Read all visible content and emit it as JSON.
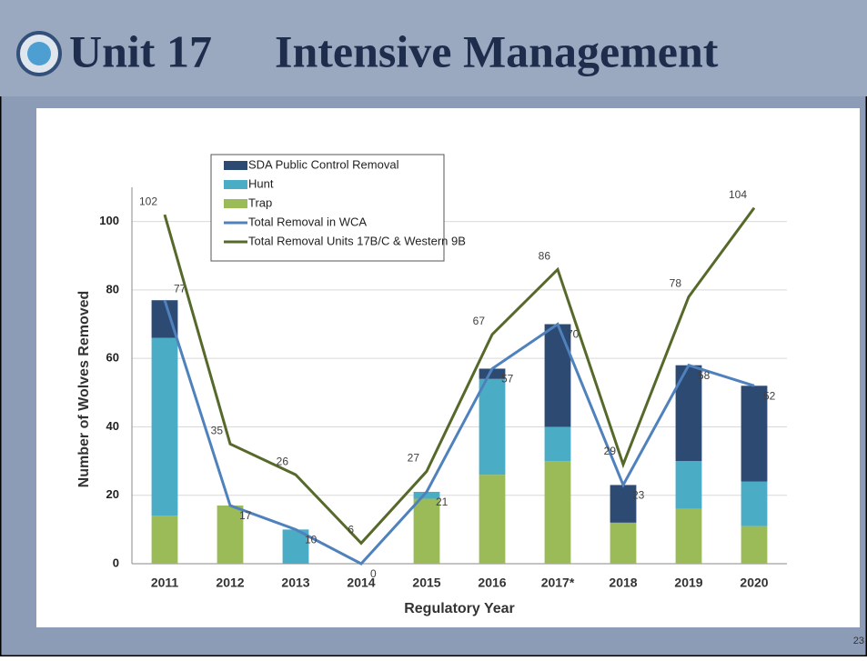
{
  "slide": {
    "title": [
      "Unit 17",
      "Intensive Management"
    ],
    "page_number": "23"
  },
  "chart_data": {
    "type": "bar",
    "stacked": true,
    "x_label": "Regulatory Year",
    "y_label": "Number of Wolves Removed",
    "categories": [
      "2011",
      "2012",
      "2013",
      "2014",
      "2015",
      "2016",
      "2017*",
      "2018",
      "2019",
      "2020"
    ],
    "series": [
      {
        "name": "SDA Public Control Removal",
        "type": "bar",
        "color": "#2d4a72",
        "values": [
          11,
          0,
          0,
          0,
          0,
          3,
          30,
          11,
          28,
          28
        ]
      },
      {
        "name": "Hunt",
        "type": "bar",
        "color": "#4bacc6",
        "values": [
          52,
          0,
          10,
          0,
          2,
          28,
          10,
          0,
          14,
          13
        ]
      },
      {
        "name": "Trap",
        "type": "bar",
        "color": "#9bbb59",
        "values": [
          14,
          17,
          0,
          0,
          19,
          26,
          30,
          12,
          16,
          11
        ]
      },
      {
        "name": "Total Removal in WCA",
        "type": "line",
        "color": "#4f81bd",
        "values": [
          77,
          17,
          10,
          0,
          21,
          57,
          70,
          23,
          58,
          52
        ]
      },
      {
        "name": "Total Removal  Units 17B/C & Western 9B",
        "type": "line",
        "color": "#56692a",
        "values": [
          102,
          35,
          26,
          6,
          27,
          67,
          86,
          29,
          78,
          104
        ]
      }
    ],
    "stack_order": [
      "Trap",
      "Hunt",
      "SDA Public Control Removal"
    ],
    "ylim": [
      0,
      110
    ],
    "yticks": [
      0,
      20,
      40,
      60,
      80,
      100
    ],
    "grid": true,
    "legend": "top-left"
  }
}
